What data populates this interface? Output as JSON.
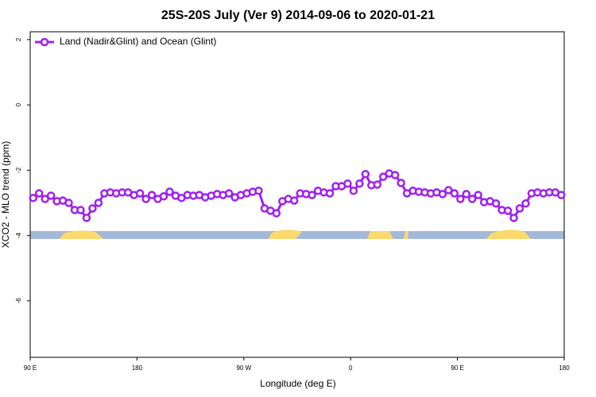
{
  "chart_data": {
    "type": "line",
    "title": "25S-20S July (Ver 9)   2014-09-06 to 2020-01-21",
    "x_label": "Longitude (deg E)",
    "y_label": "XCO2 - MLO trend (ppm)",
    "xlim": [
      90,
      540
    ],
    "ylim": [
      -7.73,
      2.24
    ],
    "xticks": [
      {
        "value": 90,
        "label": "90 E"
      },
      {
        "value": 180,
        "label": "180"
      },
      {
        "value": 270,
        "label": "90 W"
      },
      {
        "value": 360,
        "label": "0"
      },
      {
        "value": 450,
        "label": "90 E"
      },
      {
        "value": 540,
        "label": "180"
      }
    ],
    "yticks": [
      2,
      0,
      -2,
      -4,
      -6
    ],
    "legend": "top-left",
    "x": [
      92.5,
      97.5,
      102.5,
      107.5,
      112.5,
      117.5,
      122.5,
      127.5,
      132.5,
      137.5,
      142.5,
      147.5,
      152.5,
      157.5,
      162.5,
      167.5,
      172.5,
      177.5,
      182.5,
      187.5,
      192.5,
      197.5,
      202.5,
      207.5,
      212.5,
      217.5,
      222.5,
      227.5,
      232.5,
      237.5,
      242.5,
      247.5,
      252.5,
      257.5,
      262.5,
      267.5,
      272.5,
      277.5,
      282.5,
      287.5,
      292.5,
      297.5,
      302.5,
      307.5,
      312.5,
      317.5,
      322.5,
      327.5,
      332.5,
      337.5,
      342.5,
      347.5,
      352.5,
      357.5,
      362.5,
      367.5,
      372.5,
      377.5,
      382.5,
      387.5,
      392.5,
      397.5,
      402.5,
      407.5,
      412.5,
      417.5,
      422.5,
      427.5,
      432.5,
      437.5,
      442.5,
      447.5,
      452.5,
      457.5,
      462.5,
      467.5,
      472.5,
      477.5,
      482.5,
      487.5,
      492.5,
      497.5,
      502.5,
      507.5,
      512.5,
      517.5,
      522.5,
      527.5,
      532.5,
      537.5
    ],
    "series": [
      {
        "name": "Land (Nadir&Glint) and Ocean (Glint)",
        "color": "#a020f0",
        "values": [
          -2.85,
          -2.71,
          -2.88,
          -2.78,
          -2.95,
          -2.93,
          -3.0,
          -3.22,
          -3.22,
          -3.46,
          -3.17,
          -3.0,
          -2.71,
          -2.68,
          -2.71,
          -2.68,
          -2.68,
          -2.76,
          -2.71,
          -2.88,
          -2.76,
          -2.88,
          -2.8,
          -2.66,
          -2.78,
          -2.85,
          -2.76,
          -2.78,
          -2.76,
          -2.83,
          -2.78,
          -2.73,
          -2.76,
          -2.71,
          -2.83,
          -2.76,
          -2.71,
          -2.66,
          -2.63,
          -3.17,
          -3.24,
          -3.32,
          -2.95,
          -2.88,
          -2.93,
          -2.71,
          -2.73,
          -2.76,
          -2.63,
          -2.68,
          -2.71,
          -2.49,
          -2.49,
          -2.41,
          -2.63,
          -2.41,
          -2.12,
          -2.46,
          -2.44,
          -2.2,
          -2.1,
          -2.15,
          -2.39,
          -2.71,
          -2.63,
          -2.66,
          -2.68,
          -2.71,
          -2.68,
          -2.73,
          -2.61,
          -2.71,
          -2.88,
          -2.73,
          -2.88,
          -2.76,
          -2.98,
          -2.95,
          -3.02,
          -3.22,
          -3.24,
          -3.46,
          -3.17,
          -3.02,
          -2.71,
          -2.68,
          -2.71,
          -2.68,
          -2.68,
          -2.76
        ]
      }
    ]
  }
}
